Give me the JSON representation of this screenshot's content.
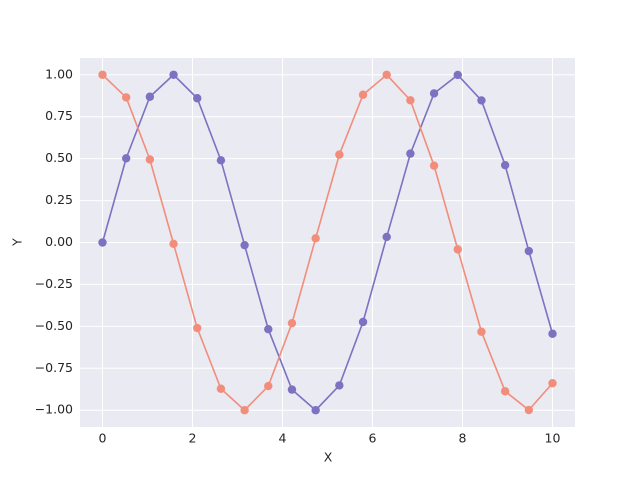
{
  "chart_data": {
    "type": "line",
    "x_label": "X",
    "y_label": "Y",
    "x": [
      0,
      0.5263,
      1.0526,
      1.5789,
      2.1053,
      2.6316,
      3.1579,
      3.6842,
      4.2105,
      4.7368,
      5.2632,
      5.7895,
      6.3158,
      6.8421,
      7.3684,
      7.8947,
      8.4211,
      8.9474,
      9.4737,
      10
    ],
    "series": [
      {
        "color": "#7b72c1",
        "values": [
          0,
          0.502,
          0.869,
          1.0,
          0.86,
          0.49,
          -0.016,
          -0.517,
          -0.877,
          -1.0,
          -0.852,
          -0.474,
          0.033,
          0.53,
          0.889,
          0.999,
          0.847,
          0.461,
          -0.051,
          -0.544
        ]
      },
      {
        "color": "#f28d7b",
        "values": [
          1.0,
          0.865,
          0.495,
          -0.008,
          -0.51,
          -0.872,
          -1.0,
          -0.856,
          -0.481,
          0.025,
          0.524,
          0.881,
          1.0,
          0.848,
          0.458,
          -0.041,
          -0.532,
          -0.887,
          -0.999,
          -0.839
        ]
      }
    ],
    "xlim": [
      -0.5,
      10.5
    ],
    "ylim": [
      -1.1,
      1.1
    ],
    "xticks": [
      0,
      2,
      4,
      6,
      8,
      10
    ],
    "yticks": [
      {
        "value": -1,
        "label": "−1.00"
      },
      {
        "value": -0.75,
        "label": "−0.75"
      },
      {
        "value": -0.5,
        "label": "−0.50"
      },
      {
        "value": -0.25,
        "label": "−0.25"
      },
      {
        "value": 0,
        "label": "0.00"
      },
      {
        "value": 0.25,
        "label": "0.25"
      },
      {
        "value": 0.5,
        "label": "0.50"
      },
      {
        "value": 0.75,
        "label": "0.75"
      },
      {
        "value": 1,
        "label": "1.00"
      }
    ],
    "grid": true,
    "background": "#eaeaf2",
    "grid_color": "#ffffff",
    "marker": true
  }
}
